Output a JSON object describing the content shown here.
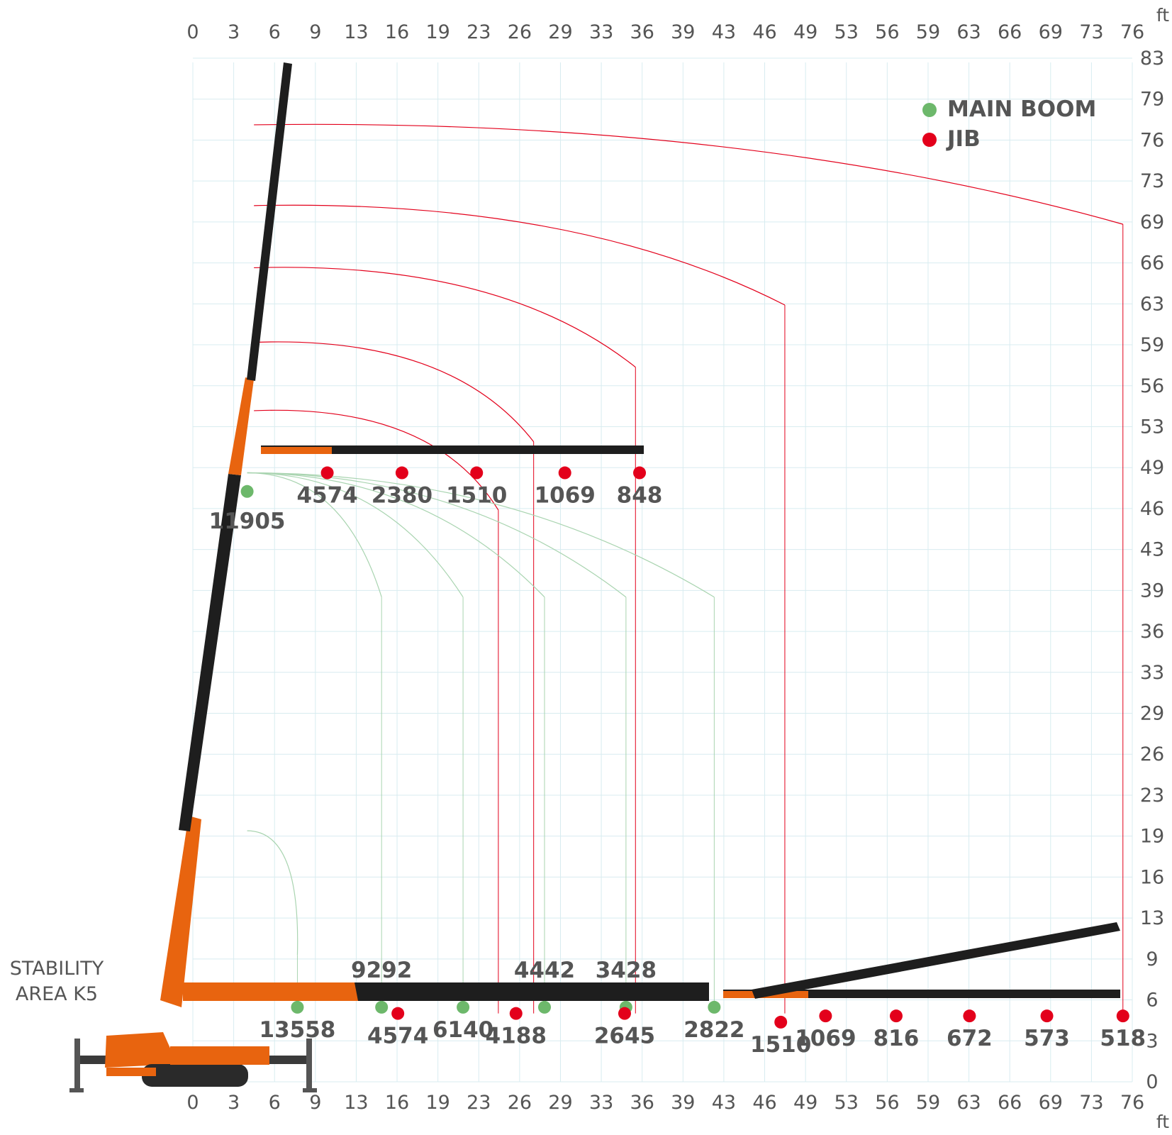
{
  "chart_data": {
    "type": "load-chart",
    "x_unit": "ft",
    "y_unit": "ft",
    "x_ticks": [
      "0",
      "3",
      "6",
      "9",
      "13",
      "16",
      "19",
      "23",
      "26",
      "29",
      "33",
      "36",
      "39",
      "43",
      "46",
      "49",
      "53",
      "56",
      "59",
      "63",
      "66",
      "69",
      "73",
      "76"
    ],
    "y_ticks": [
      "0",
      "3",
      "6",
      "9",
      "13",
      "16",
      "19",
      "23",
      "26",
      "29",
      "33",
      "36",
      "39",
      "43",
      "46",
      "49",
      "53",
      "56",
      "59",
      "63",
      "66",
      "69",
      "73",
      "76",
      "79",
      "83"
    ],
    "legend": [
      {
        "name": "MAIN BOOM",
        "color": "#6db86b"
      },
      {
        "name": "JIB",
        "color": "#e3001b"
      }
    ],
    "stability_label": [
      "STABILITY",
      "AREA K5"
    ],
    "main_boom_points": [
      {
        "x": 4,
        "y": 47.5,
        "load": "11905"
      },
      {
        "x": 7.7,
        "y": 6,
        "load": "13558"
      },
      {
        "x": 13.9,
        "y": 6,
        "load": "9292"
      },
      {
        "x": 19.9,
        "y": 6,
        "load": "6140"
      },
      {
        "x": 25.9,
        "y": 6,
        "load": "4442"
      },
      {
        "x": 31.9,
        "y": 6,
        "load": "3428"
      },
      {
        "x": 38.4,
        "y": 6,
        "load": "2822"
      }
    ],
    "jib_points": [
      {
        "x": 9.9,
        "y": 49,
        "load": "4574"
      },
      {
        "x": 15.4,
        "y": 49,
        "load": "2380"
      },
      {
        "x": 20.9,
        "y": 49,
        "load": "1510"
      },
      {
        "x": 27.4,
        "y": 49,
        "load": "1069"
      },
      {
        "x": 32.9,
        "y": 49,
        "load": "848"
      },
      {
        "x": 15.1,
        "y": 5.5,
        "load": "4574"
      },
      {
        "x": 23.8,
        "y": 5.5,
        "load": "4188"
      },
      {
        "x": 31.8,
        "y": 5.5,
        "load": "2645"
      },
      {
        "x": 43.3,
        "y": 4.8,
        "load": "1510"
      },
      {
        "x": 46.6,
        "y": 5.3,
        "load": "1069"
      },
      {
        "x": 51.8,
        "y": 5.3,
        "load": "816"
      },
      {
        "x": 57.2,
        "y": 5.3,
        "load": "672"
      },
      {
        "x": 62.9,
        "y": 5.3,
        "load": "573"
      },
      {
        "x": 68.5,
        "y": 5.3,
        "load": "518"
      }
    ],
    "main_boom_arcs": [
      {
        "reach": 7.7,
        "top": 20.2
      },
      {
        "reach": 13.9,
        "top": 49
      },
      {
        "reach": 19.9,
        "top": 49
      },
      {
        "reach": 25.9,
        "top": 49
      },
      {
        "reach": 31.9,
        "top": 49
      },
      {
        "reach": 38.4,
        "top": 49
      }
    ],
    "jib_arcs": [
      {
        "reach": 22.5,
        "top": 54
      },
      {
        "reach": 25.1,
        "top": 59.5
      },
      {
        "reach": 32.6,
        "top": 65.5
      },
      {
        "reach": 43.6,
        "top": 70.5
      },
      {
        "reach": 68.5,
        "top": 77
      }
    ]
  }
}
